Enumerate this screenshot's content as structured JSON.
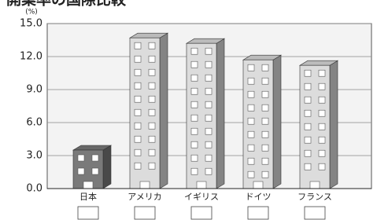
{
  "chart_data": {
    "type": "bar3d",
    "title": "開業率の国際比較",
    "y_label": "(%)",
    "categories": [
      "日本",
      "アメリカ",
      "イギリス",
      "ドイツ",
      "フランス"
    ],
    "values": [
      3.5,
      13.7,
      13.2,
      11.7,
      11.2
    ],
    "colors": [
      "#7a7a7a",
      "#dcdcdc",
      "#dcdcdc",
      "#dcdcdc",
      "#dcdcdc"
    ],
    "ylim": [
      0,
      15
    ],
    "yticks": [
      {
        "value": 0,
        "label": "0.0"
      },
      {
        "value": 3,
        "label": "3.0"
      },
      {
        "value": 6,
        "label": "6.0"
      },
      {
        "value": 9,
        "label": "9.0"
      },
      {
        "value": 12,
        "label": "12.0"
      },
      {
        "value": 15,
        "label": "15.0"
      }
    ],
    "grid": true
  }
}
